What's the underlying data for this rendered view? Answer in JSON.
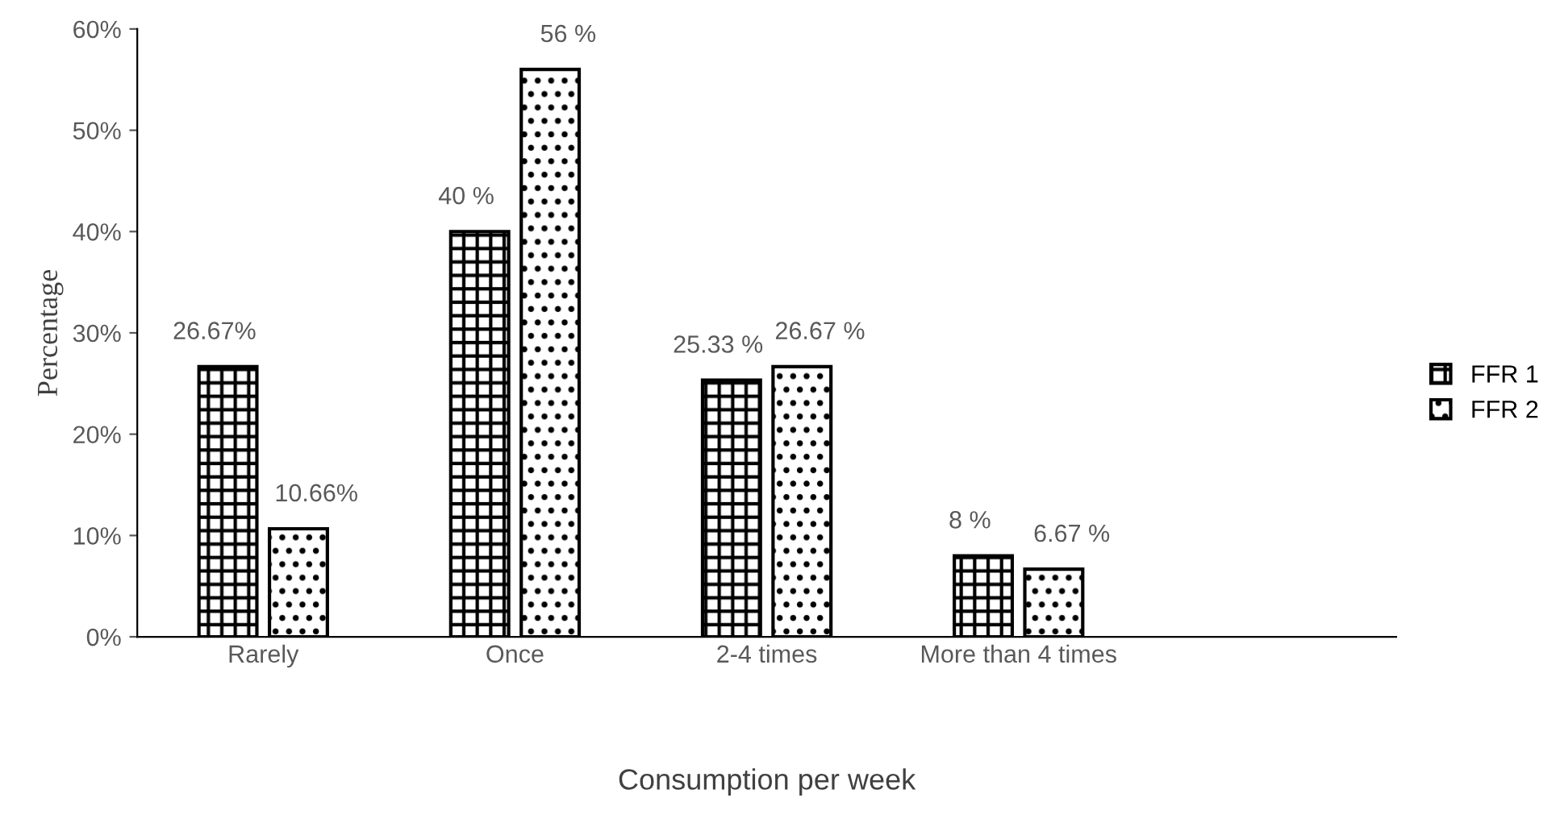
{
  "chart_data": {
    "type": "bar",
    "xlabel": "Consumption per week",
    "ylabel": "Percentage",
    "categories": [
      "Rarely",
      "Once",
      "2-4 times",
      "More than 4 times",
      null
    ],
    "series": [
      {
        "name": "FFR 1",
        "color": "#000000",
        "values": [
          26.67,
          40,
          25.33,
          8,
          null
        ],
        "value_labels": [
          "26.67%",
          "40 %",
          "25.33 %",
          "8 %",
          null
        ]
      },
      {
        "name": "FFR 2",
        "color": "#000000",
        "values": [
          10.66,
          56,
          26.67,
          6.67,
          null
        ],
        "value_labels": [
          "10.66%",
          "56 %",
          "26.67 %",
          "6.67 %",
          null
        ]
      }
    ],
    "ylim": [
      0,
      60
    ],
    "yticks": [
      {
        "value": 0,
        "label": "0%"
      },
      {
        "value": 10,
        "label": "10%"
      },
      {
        "value": 20,
        "label": "20%"
      },
      {
        "value": 30,
        "label": "30%"
      },
      {
        "value": 40,
        "label": "40%"
      },
      {
        "value": 50,
        "label": "50%"
      },
      {
        "value": 60,
        "label": "60%"
      }
    ],
    "grid": false,
    "legend": "right"
  }
}
